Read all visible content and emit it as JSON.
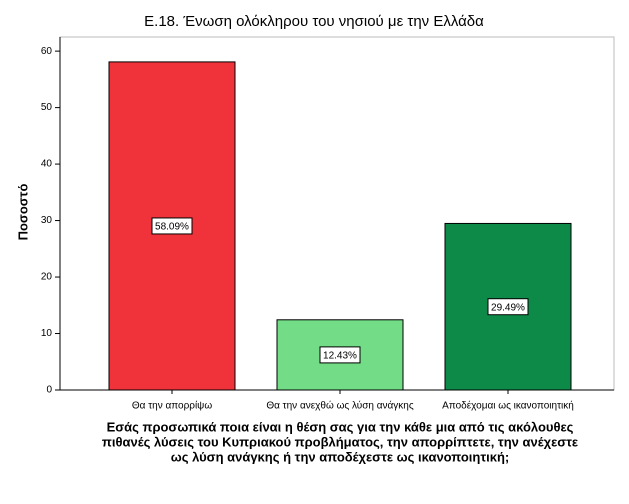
{
  "chart_data": {
    "type": "bar",
    "title": "E.18. Ένωση ολόκληρου του νησιού με την Ελλάδα",
    "ylabel": "Ποσοστό",
    "xlabel": [
      "Εσάς προσωπικά ποια είναι η θέση σας για την κάθε μια από τις ακόλουθες",
      "πιθανές λύσεις του Κυπριακού προβλήματος, την απορρίπτετε, την ανέχεστε",
      "ως λύση ανάγκης ή την αποδέχεστε ως ικανοποιητική;"
    ],
    "categories": [
      "Θα την απορρίψω",
      "Θα την ανεχθώ ως λύση ανάγκης",
      "Αποδέχομαι  ως ικανοποιητική"
    ],
    "values": [
      58.09,
      12.43,
      29.49
    ],
    "value_labels": [
      "58.09%",
      "12.43%",
      "29.49%"
    ],
    "colors": [
      "#f0333a",
      "#72dc86",
      "#0e8a48"
    ],
    "ylim": [
      0,
      62.5
    ],
    "yticks": [
      0,
      10,
      20,
      30,
      40,
      50,
      60
    ]
  }
}
